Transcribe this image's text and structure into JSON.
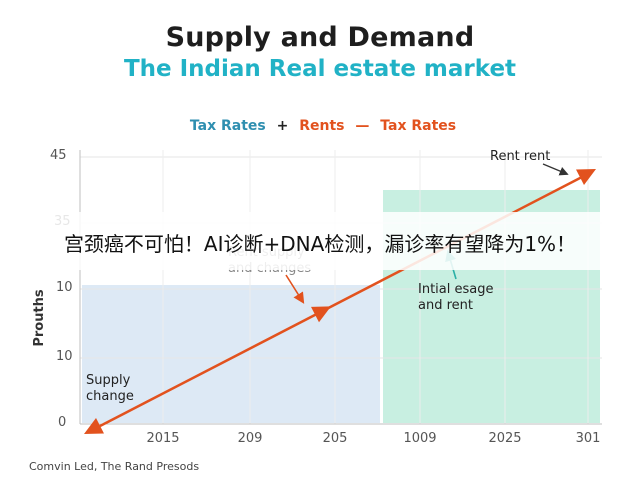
{
  "chart_data": {
    "type": "line",
    "title": "Supply and Demand",
    "subtitle": "The Indian Real estate market",
    "legend": {
      "tax_rates": "Tax Rates",
      "plus": "+",
      "rents": "Rents",
      "dash": "—",
      "tax_rates_2": "Tax Rates"
    },
    "ylabel": "Prouths",
    "ytick_labels": [
      "0",
      "10",
      "10",
      "35",
      "45"
    ],
    "xtick_labels": [
      "2015",
      "209",
      "205",
      "1009",
      "2025",
      "301"
    ],
    "series": [
      {
        "values": [
          0,
          45
        ]
      }
    ],
    "line_color": "#e2521e",
    "marker_point": {
      "x_index": 2.8,
      "value": 17
    },
    "regions": [
      {
        "label": "Supply change",
        "color": "#dde9f5"
      },
      {
        "label": "Intial esage and rent",
        "color": "#c8efe1"
      }
    ],
    "annotations": {
      "supply_change": "Supply change",
      "rent_supply": "Rent supply and changes",
      "initial_usage": "Intial esage and rent",
      "rent_rent": "Rent rent"
    },
    "footer": "Comvin Led, The Rand Presods",
    "grid": true
  },
  "overlay": {
    "text": "宫颈癌不可怕！AI诊断+DNA检测，漏诊率有望降为1%！"
  }
}
